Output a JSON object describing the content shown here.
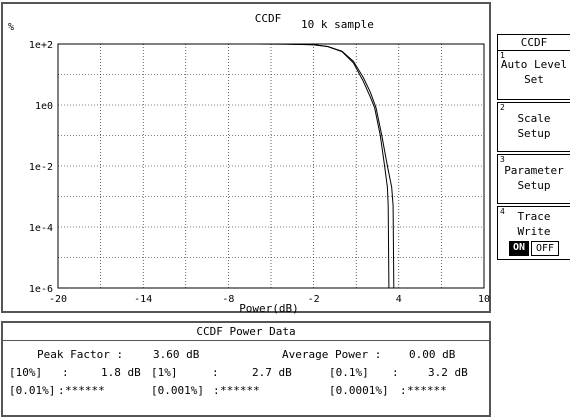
{
  "chart_data": {
    "type": "line",
    "title": "CCDF",
    "subtitle": "10 k sample",
    "xlabel": "Power(dB)",
    "ylabel": "%",
    "xlim": [
      -20,
      10
    ],
    "ylim_log10": [
      -6,
      2
    ],
    "y_scale": "log",
    "grid": true,
    "x_ticks": [
      "-20",
      "-14",
      "-8",
      "-2",
      "4",
      "10"
    ],
    "y_ticks": [
      "1e+2",
      "1e0",
      "1e-2",
      "1e-4",
      "1e-6"
    ],
    "series": [
      {
        "x": [
          -8,
          -6,
          -4,
          -2,
          -1,
          0,
          0.8,
          1.5,
          2.0,
          2.3,
          2.7,
          3.0,
          3.2,
          3.25,
          3.3
        ],
        "y": [
          100,
          99.97,
          99.5,
          95,
          82,
          56,
          24,
          6,
          1.8,
          0.8,
          0.1,
          0.01,
          0.002,
          0.0005,
          1e-06
        ]
      },
      {
        "x": [
          -8,
          -6,
          -4,
          -2,
          -1,
          0,
          0.8,
          1.5,
          2.0,
          2.4,
          2.8,
          3.2,
          3.5,
          3.6,
          3.65
        ],
        "y": [
          100,
          99.97,
          99.5,
          95,
          83,
          58,
          27,
          8,
          2.6,
          0.8,
          0.1,
          0.01,
          0.002,
          0.0005,
          1e-06
        ]
      }
    ]
  },
  "data_panel": {
    "title": "CCDF Power Data",
    "peak_factor_label": "Peak Factor :",
    "peak_factor_value": "3.60 dB",
    "average_power_label": "Average Power :",
    "average_power_value": "0.00 dB",
    "p10_label": "[10%]",
    "p10_value": "1.8 dB",
    "p1_label": "[1%]",
    "p1_value": "2.7 dB",
    "p01_label": "[0.1%]",
    "p01_value": "3.2 dB",
    "p001_label": "[0.01%]",
    "p001_value": "******",
    "p0001_label": "[0.001%]",
    "p0001_value": "******",
    "p00001_label": "[0.0001%]",
    "p00001_value": "******",
    "colon": ":"
  },
  "softkeys": {
    "title": "CCDF",
    "k1_num": "1",
    "k1_line1": "Auto Level",
    "k1_line2": "Set",
    "k2_num": "2",
    "k2_line1": "Scale",
    "k2_line2": "Setup",
    "k3_num": "3",
    "k3_line1": "Parameter",
    "k3_line2": "Setup",
    "k4_num": "4",
    "k4_line1": "Trace",
    "k4_line2": "Write",
    "k4_on": "ON",
    "k4_off": "OFF"
  }
}
